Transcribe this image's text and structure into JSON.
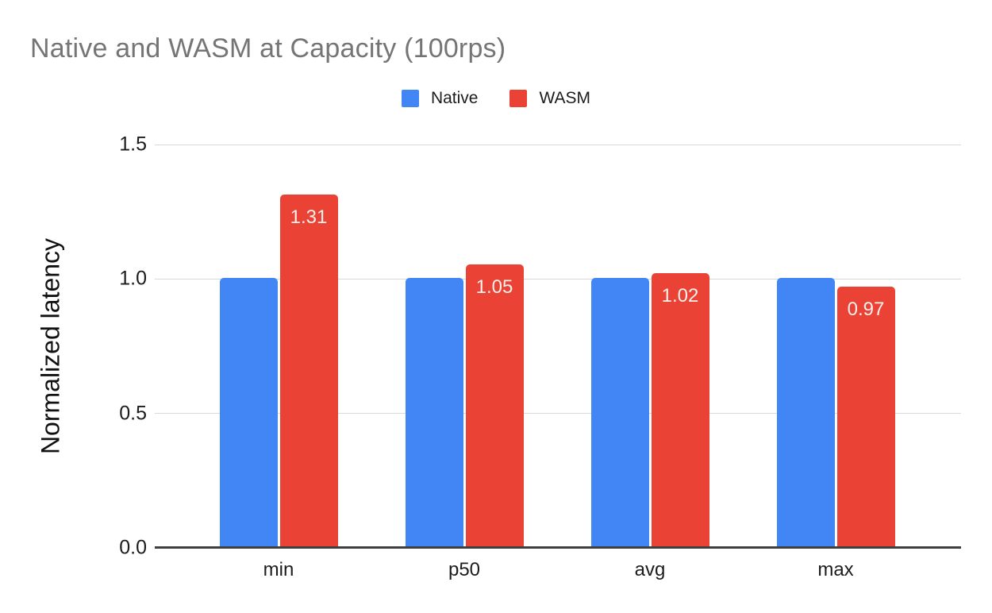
{
  "chart_data": {
    "type": "bar",
    "title": "Native and WASM at Capacity (100rps)",
    "ylabel": "Normalized latency",
    "xlabel": "",
    "ylim": [
      0,
      1.5
    ],
    "grid": true,
    "legend_position": "top-center",
    "categories": [
      "min",
      "p50",
      "avg",
      "max"
    ],
    "series": [
      {
        "name": "Native",
        "color": "#4285F4",
        "values": [
          1.0,
          1.0,
          1.0,
          1.0
        ],
        "labels": null
      },
      {
        "name": "WASM",
        "color": "#EA4335",
        "values": [
          1.31,
          1.05,
          1.02,
          0.97
        ],
        "labels": [
          "1.31",
          "1.05",
          "1.02",
          "0.97"
        ]
      }
    ],
    "yticks": [
      {
        "label": "0.0",
        "value": 0
      },
      {
        "label": "0.5",
        "value": 0.5
      },
      {
        "label": "1.0",
        "value": 1.0
      },
      {
        "label": "1.5",
        "value": 1.5
      }
    ]
  }
}
